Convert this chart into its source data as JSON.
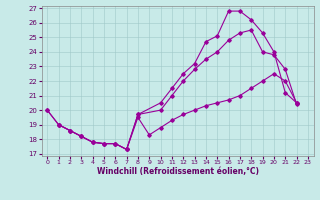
{
  "background_color": "#c8eae8",
  "line_color": "#990099",
  "xlabel": "Windchill (Refroidissement éolien,°C)",
  "ylim": [
    17,
    27
  ],
  "xlim": [
    -0.5,
    23.5
  ],
  "yticks": [
    17,
    18,
    19,
    20,
    21,
    22,
    23,
    24,
    25,
    26,
    27
  ],
  "xticks": [
    0,
    1,
    2,
    3,
    4,
    5,
    6,
    7,
    8,
    9,
    10,
    11,
    12,
    13,
    14,
    15,
    16,
    17,
    18,
    19,
    20,
    21,
    22,
    23
  ],
  "series": [
    {
      "x": [
        0,
        1,
        2,
        3,
        4,
        5,
        6,
        7,
        8,
        10,
        11,
        12,
        13,
        14,
        15,
        16,
        17,
        18,
        19,
        20,
        21,
        22
      ],
      "y": [
        20.0,
        19.0,
        18.6,
        18.2,
        17.8,
        17.7,
        17.7,
        17.3,
        19.7,
        20.5,
        21.5,
        22.5,
        23.2,
        24.7,
        25.1,
        26.8,
        26.8,
        26.2,
        25.3,
        24.0,
        21.2,
        20.5
      ]
    },
    {
      "x": [
        0,
        1,
        2,
        3,
        4,
        5,
        6,
        7,
        8,
        10,
        11,
        12,
        13,
        14,
        15,
        16,
        17,
        18,
        19,
        20,
        21,
        22
      ],
      "y": [
        20.0,
        19.0,
        18.6,
        18.2,
        17.8,
        17.7,
        17.7,
        17.3,
        19.7,
        20.0,
        21.0,
        22.0,
        22.8,
        23.5,
        24.0,
        24.8,
        25.3,
        25.5,
        24.0,
        23.8,
        22.8,
        20.4
      ]
    },
    {
      "x": [
        1,
        2,
        3,
        4,
        5,
        6,
        7,
        8,
        9,
        10,
        11,
        12,
        13,
        14,
        15,
        16,
        17,
        18,
        19,
        20,
        21,
        22
      ],
      "y": [
        19.0,
        18.6,
        18.2,
        17.8,
        17.7,
        17.7,
        17.3,
        19.5,
        18.3,
        18.8,
        19.3,
        19.7,
        20.0,
        20.3,
        20.5,
        20.7,
        21.0,
        21.5,
        22.0,
        22.5,
        22.0,
        20.5
      ]
    }
  ]
}
